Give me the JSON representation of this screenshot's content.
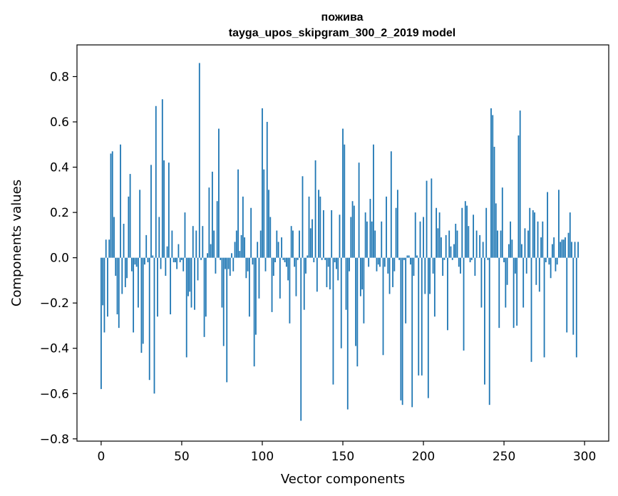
{
  "chart_data": {
    "type": "bar",
    "title": "пожива",
    "subtitle": "tayga_upos_skipgram_300_2_2019 model",
    "xlabel": "Vector components",
    "ylabel": "Components values",
    "xlim": [
      -15,
      315
    ],
    "ylim": [
      -0.81,
      0.94
    ],
    "xticks": [
      0,
      50,
      100,
      150,
      200,
      250,
      300
    ],
    "xtick_labels": [
      "0",
      "50",
      "100",
      "150",
      "200",
      "250",
      "300"
    ],
    "yticks": [
      -0.8,
      -0.6,
      -0.4,
      -0.2,
      0.0,
      0.2,
      0.4,
      0.6,
      0.8
    ],
    "ytick_labels": [
      "−0.8",
      "−0.6",
      "−0.4",
      "−0.2",
      "0.0",
      "0.2",
      "0.4",
      "0.6",
      "0.8"
    ],
    "grid": false,
    "bar_color": "#1f77b4",
    "x_start": 0,
    "values": [
      -0.58,
      -0.21,
      -0.33,
      0.08,
      -0.26,
      0.08,
      0.46,
      0.47,
      0.18,
      -0.08,
      -0.25,
      -0.31,
      0.5,
      -0.16,
      0.15,
      -0.13,
      -0.09,
      0.27,
      0.37,
      -0.06,
      -0.33,
      -0.03,
      -0.04,
      -0.22,
      0.3,
      -0.42,
      -0.38,
      -0.03,
      0.1,
      -0.02,
      -0.54,
      0.41,
      0.01,
      -0.6,
      0.67,
      -0.26,
      0.18,
      -0.05,
      0.7,
      0.43,
      -0.08,
      0.05,
      0.42,
      -0.25,
      0.12,
      -0.02,
      -0.02,
      -0.05,
      0.06,
      -0.02,
      -0.01,
      -0.06,
      0.2,
      -0.44,
      -0.17,
      -0.15,
      -0.22,
      0.14,
      -0.23,
      0.12,
      -0.1,
      0.86,
      -0.01,
      0.14,
      -0.35,
      -0.26,
      0.02,
      0.31,
      0.06,
      0.38,
      0.12,
      -0.07,
      0.25,
      0.57,
      -0.01,
      -0.22,
      -0.39,
      -0.05,
      -0.55,
      -0.05,
      -0.08,
      0.02,
      -0.06,
      0.07,
      0.12,
      0.39,
      0.03,
      0.1,
      0.27,
      0.09,
      -0.09,
      -0.06,
      -0.26,
      0.22,
      -0.03,
      -0.48,
      -0.34,
      0.07,
      -0.18,
      0.12,
      0.66,
      0.39,
      -0.06,
      0.6,
      0.3,
      0.18,
      -0.24,
      -0.08,
      -0.02,
      0.12,
      0.07,
      -0.18,
      0.09,
      -0.01,
      -0.02,
      -0.04,
      -0.1,
      -0.29,
      0.14,
      0.12,
      -0.04,
      -0.17,
      -0.01,
      0.12,
      -0.72,
      0.36,
      -0.23,
      -0.07,
      0.01,
      0.27,
      0.13,
      0.17,
      -0.02,
      0.43,
      -0.15,
      0.3,
      0.27,
      -0.01,
      0.21,
      -0.01,
      -0.13,
      -0.04,
      -0.14,
      0.21,
      -0.56,
      -0.02,
      -0.05,
      -0.1,
      0.19,
      -0.4,
      0.57,
      0.5,
      -0.23,
      -0.67,
      -0.06,
      0.18,
      0.25,
      0.23,
      -0.39,
      -0.48,
      0.42,
      -0.17,
      -0.14,
      -0.29,
      0.2,
      0.16,
      -0.04,
      0.26,
      0.16,
      0.5,
      0.12,
      -0.06,
      -0.03,
      -0.04,
      0.16,
      -0.43,
      -0.04,
      0.27,
      -0.07,
      -0.16,
      0.47,
      -0.13,
      -0.06,
      0.22,
      0.3,
      -0.01,
      -0.63,
      -0.65,
      -0.01,
      -0.29,
      0.01,
      0.01,
      -0.03,
      -0.66,
      -0.08,
      0.2,
      0.01,
      -0.52,
      0.16,
      -0.52,
      0.18,
      -0.16,
      0.34,
      -0.62,
      -0.16,
      0.35,
      -0.07,
      -0.26,
      0.22,
      0.13,
      0.2,
      0.09,
      -0.08,
      -0.01,
      0.1,
      -0.32,
      0.12,
      0.05,
      -0.01,
      0.06,
      0.15,
      0.12,
      -0.04,
      -0.07,
      0.22,
      -0.41,
      0.25,
      0.23,
      0.14,
      -0.02,
      -0.01,
      0.19,
      -0.08,
      0.12,
      0.0,
      0.1,
      -0.22,
      0.07,
      -0.56,
      0.22,
      -0.01,
      -0.65,
      0.66,
      0.63,
      0.49,
      0.24,
      0.12,
      -0.31,
      0.12,
      0.31,
      -0.02,
      -0.22,
      -0.12,
      0.06,
      0.16,
      0.08,
      -0.31,
      -0.07,
      -0.3,
      0.54,
      0.65,
      0.06,
      -0.22,
      0.13,
      -0.07,
      0.12,
      0.22,
      -0.46,
      0.21,
      0.2,
      -0.12,
      0.16,
      -0.15,
      0.09,
      0.16,
      -0.44,
      -0.02,
      0.29,
      -0.03,
      -0.09,
      0.06,
      0.09,
      -0.06,
      -0.03,
      0.3,
      0.07,
      0.08,
      0.08,
      0.09,
      -0.33,
      0.11,
      0.2,
      0.07,
      -0.34,
      0.07,
      -0.44,
      0.07
    ]
  }
}
